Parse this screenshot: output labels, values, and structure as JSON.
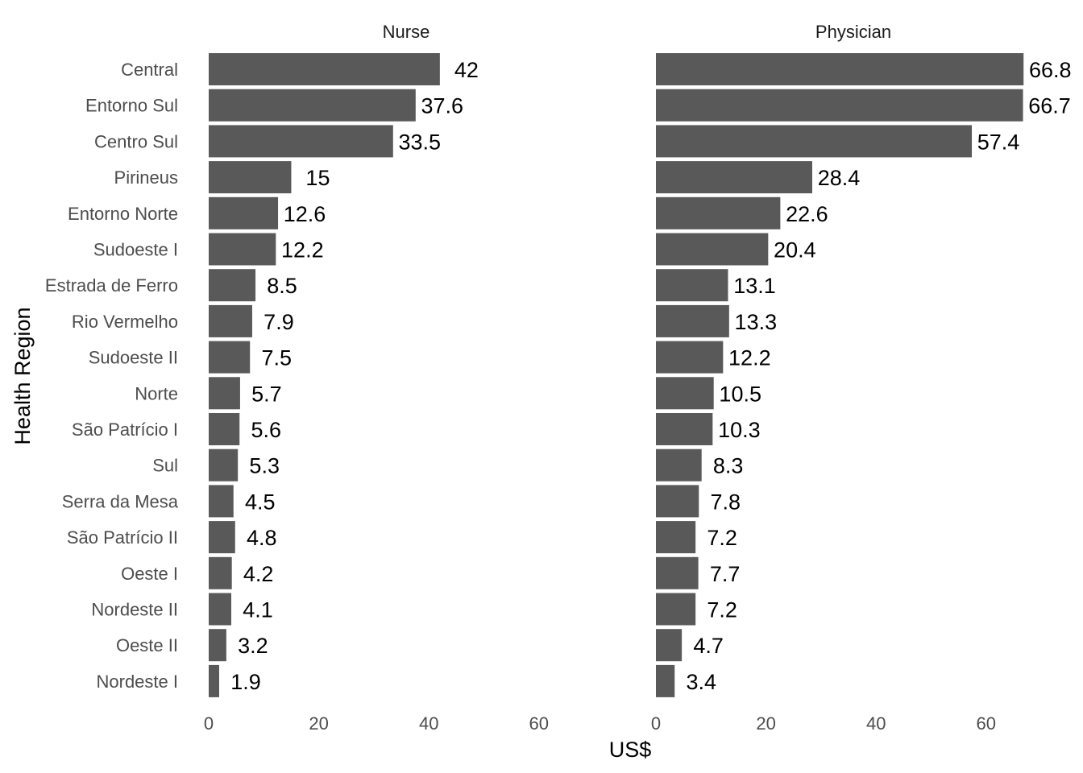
{
  "chart_data": {
    "type": "bar",
    "orientation": "horizontal",
    "xlabel": "US$",
    "ylabel": "Health Region",
    "xlim": [
      0,
      66.8
    ],
    "xticks": [
      0,
      20,
      40,
      60
    ],
    "grid": false,
    "bar_color": "#595959",
    "categories": [
      "Central",
      "Entorno Sul",
      "Centro Sul",
      "Pirineus",
      "Entorno Norte",
      "Sudoeste I",
      "Estrada de Ferro",
      "Rio Vermelho",
      "Sudoeste II",
      "Norte",
      "São Patrício I",
      "Sul",
      "Serra da Mesa",
      "São Patrício II",
      "Oeste I",
      "Nordeste II",
      "Oeste II",
      "Nordeste I"
    ],
    "panels": [
      {
        "title": "Nurse",
        "values": [
          42,
          37.6,
          33.5,
          15,
          12.6,
          12.2,
          8.5,
          7.9,
          7.5,
          5.7,
          5.6,
          5.3,
          4.5,
          4.8,
          4.2,
          4.1,
          3.2,
          1.9
        ]
      },
      {
        "title": "Physician",
        "values": [
          66.8,
          66.7,
          57.4,
          28.4,
          22.6,
          20.4,
          13.1,
          13.3,
          12.2,
          10.5,
          10.3,
          8.3,
          7.8,
          7.2,
          7.7,
          7.2,
          4.7,
          3.4
        ]
      }
    ]
  }
}
